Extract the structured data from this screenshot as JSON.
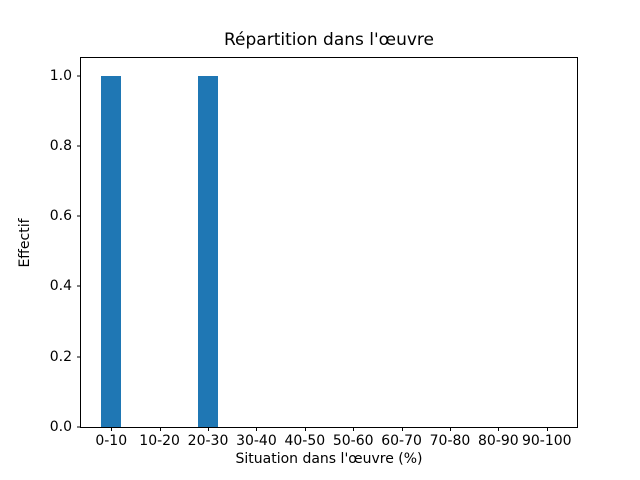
{
  "figure": {
    "background_color": "#ffffff"
  },
  "chart_data": {
    "type": "bar",
    "title": "Répartition dans l'œuvre",
    "xlabel": "Situation dans l'œuvre (%)",
    "ylabel": "Effectif",
    "categories": [
      "0-10",
      "10-20",
      "20-30",
      "30-40",
      "40-50",
      "50-60",
      "60-70",
      "70-80",
      "80-90",
      "90-100"
    ],
    "values": [
      1,
      0,
      1,
      0,
      0,
      0,
      0,
      0,
      0,
      0
    ],
    "yticks": [
      0.0,
      0.2,
      0.4,
      0.6,
      0.8,
      1.0
    ],
    "ytick_labels": [
      "0.0",
      "0.2",
      "0.4",
      "0.6",
      "0.8",
      "1.0"
    ],
    "ylim": [
      0,
      1.05
    ],
    "bar_color": "#1f77b4",
    "spine_color": "#000000",
    "grid": false,
    "legend_position": "none"
  }
}
